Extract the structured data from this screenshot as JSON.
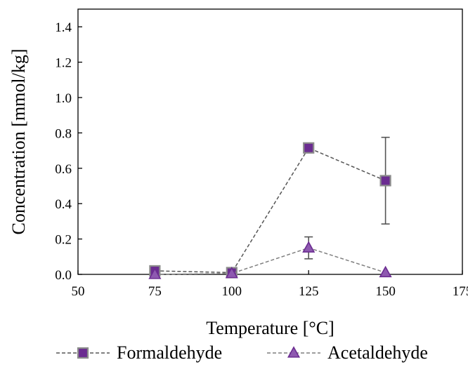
{
  "chart_data": {
    "type": "line",
    "xlabel": "Temperature [°C]",
    "ylabel": "Concentration [mmol/kg]",
    "xlim": [
      50,
      175
    ],
    "ylim": [
      0.0,
      1.5
    ],
    "x_ticks": [
      50,
      75,
      100,
      125,
      150,
      175
    ],
    "x_tick_labels": [
      "50",
      "75",
      "100",
      "125",
      "150",
      "175"
    ],
    "y_ticks": [
      0.0,
      0.2,
      0.4,
      0.6,
      0.8,
      1.0,
      1.2,
      1.4
    ],
    "y_tick_labels": [
      "0.0",
      "0.2",
      "0.4",
      "0.6",
      "0.8",
      "1.0",
      "1.2",
      "1.4"
    ],
    "grid": false,
    "legend_placement": "bottom",
    "series": [
      {
        "name": "Formaldehyde",
        "marker": "square",
        "color": "#6B2C91",
        "marker_edge": "#8C8C8C",
        "line_color": "#555555",
        "line_style": "dashed",
        "x": [
          75,
          100,
          125,
          150
        ],
        "y": [
          0.02,
          0.01,
          0.715,
          0.53
        ],
        "error": [
          0.0,
          0.0,
          0.0,
          0.245
        ]
      },
      {
        "name": "Acetaldehyde",
        "marker": "triangle",
        "color": "#8E59B0",
        "marker_edge": "#6B2C91",
        "line_color": "#7F7F7F",
        "line_style": "dashed",
        "x": [
          75,
          100,
          125,
          150
        ],
        "y": [
          0.0,
          0.005,
          0.15,
          0.01
        ],
        "error": [
          0.0,
          0.0,
          0.062,
          0.0
        ]
      }
    ]
  }
}
